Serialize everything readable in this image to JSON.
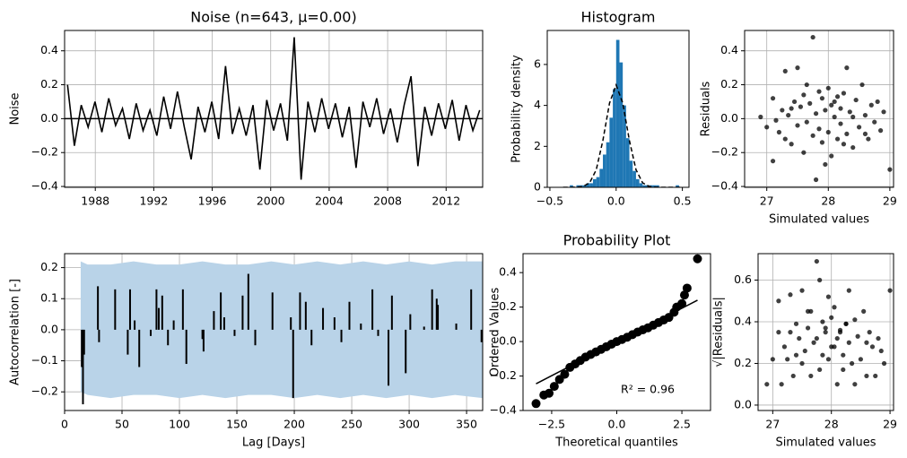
{
  "chart_data": [
    {
      "type": "line",
      "title": "Noise (n=643, μ=0.00)",
      "y_label": "Noise",
      "x": [
        1986.1,
        1986.57,
        1987.04,
        1987.51,
        1987.98,
        1988.45,
        1988.92,
        1989.39,
        1989.86,
        1990.33,
        1990.8,
        1991.27,
        1991.74,
        1992.21,
        1992.68,
        1993.15,
        1993.62,
        1994.09,
        1994.56,
        1995.03,
        1995.5,
        1995.97,
        1996.44,
        1996.91,
        1997.38,
        1997.85,
        1998.32,
        1998.79,
        1999.26,
        1999.73,
        2000.2,
        2000.67,
        2001.14,
        2001.61,
        2002.08,
        2002.55,
        2003.02,
        2003.49,
        2003.96,
        2004.43,
        2004.9,
        2005.37,
        2005.84,
        2006.31,
        2006.78,
        2007.25,
        2007.72,
        2008.19,
        2008.66,
        2009.13,
        2009.6,
        2010.07,
        2010.54,
        2011.01,
        2011.48,
        2011.95,
        2012.42,
        2012.89,
        2013.36,
        2013.83,
        2014.3
      ],
      "values": [
        0.2,
        -0.16,
        0.08,
        -0.05,
        0.1,
        -0.08,
        0.12,
        -0.04,
        0.06,
        -0.12,
        0.09,
        -0.07,
        0.05,
        -0.1,
        0.13,
        -0.06,
        0.16,
        -0.05,
        -0.24,
        0.07,
        -0.08,
        0.1,
        -0.12,
        0.31,
        -0.09,
        0.06,
        -0.1,
        0.08,
        -0.3,
        0.11,
        -0.07,
        0.09,
        -0.13,
        0.48,
        -0.36,
        0.1,
        -0.08,
        0.12,
        -0.06,
        0.09,
        -0.11,
        0.07,
        -0.29,
        0.1,
        -0.05,
        0.12,
        -0.09,
        0.06,
        -0.14,
        0.08,
        0.25,
        -0.28,
        0.07,
        -0.1,
        0.09,
        -0.06,
        0.11,
        -0.13,
        0.08,
        -0.07,
        0.05
      ],
      "color": "#000000",
      "hline": 0,
      "xlim": [
        1985.9,
        2014.5
      ],
      "xticks": [
        1988,
        1992,
        1996,
        2000,
        2004,
        2008,
        2012
      ],
      "ylim": [
        -0.405,
        0.52
      ],
      "yticks": [
        {
          "value": -0.4,
          "label": "−0.4"
        },
        {
          "value": -0.2,
          "label": "−0.2"
        },
        {
          "value": 0,
          "label": "0.0"
        },
        0.2,
        0.4
      ],
      "grid": true
    },
    {
      "type": "histogram",
      "title": "Histogram",
      "y_label": "Probability density",
      "bins": [
        -0.35,
        -0.325,
        -0.3,
        -0.275,
        -0.25,
        -0.225,
        -0.2,
        -0.175,
        -0.15,
        -0.125,
        -0.1,
        -0.075,
        -0.05,
        -0.025,
        0,
        0.025,
        0.05,
        0.075,
        0.1,
        0.125,
        0.15,
        0.175,
        0.2,
        0.225,
        0.25,
        0.275,
        0.3,
        0.325,
        0.35,
        0.375,
        0.4,
        0.425,
        0.45,
        0.475
      ],
      "values": [
        0.1,
        0,
        0.1,
        0.1,
        0.1,
        0.2,
        0.2,
        0.4,
        0.5,
        0.9,
        1.6,
        2.2,
        3.4,
        4.8,
        7.2,
        6.1,
        4.0,
        2.4,
        1.3,
        0.8,
        0.4,
        0.2,
        0.1,
        0.1,
        0.1,
        0.1,
        0.1,
        0,
        0,
        0,
        0,
        0,
        0.1
      ],
      "color": "#1f77b4",
      "curve": {
        "x": [
          -0.4,
          -0.3,
          -0.25,
          -0.2,
          -0.15,
          -0.1,
          -0.05,
          0,
          0.05,
          0.1,
          0.15,
          0.2,
          0.25,
          0.3,
          0.4,
          0.5
        ],
        "values": [
          0,
          0.004,
          0.04,
          0.22,
          0.86,
          2.29,
          4.11,
          5.0,
          4.11,
          2.29,
          0.86,
          0.22,
          0.04,
          0.004,
          0,
          0
        ],
        "color": "#000000",
        "dashed": true
      },
      "xlim": [
        -0.52,
        0.55
      ],
      "xticks": [
        {
          "value": -0.5,
          "label": "−0.5"
        },
        {
          "value": 0,
          "label": "0.0"
        },
        0.5
      ],
      "ylim": [
        0,
        7.66
      ],
      "yticks": [
        0,
        2,
        4,
        6
      ],
      "grid": false
    },
    {
      "type": "scatter",
      "x_label": "Simulated values",
      "y_label": "Residuals",
      "x": [
        26.9,
        27.0,
        27.1,
        27.1,
        27.2,
        27.25,
        27.3,
        27.3,
        27.35,
        27.4,
        27.45,
        27.5,
        27.5,
        27.55,
        27.6,
        27.6,
        27.65,
        27.7,
        27.75,
        27.75,
        27.8,
        27.8,
        27.85,
        27.9,
        27.9,
        27.95,
        28.0,
        28.0,
        28.05,
        28.1,
        28.1,
        28.15,
        28.2,
        28.2,
        28.25,
        28.3,
        28.3,
        28.35,
        28.4,
        28.45,
        28.5,
        28.55,
        28.6,
        28.65,
        28.7,
        28.75,
        28.8,
        28.85,
        28.9,
        29.0,
        27.15,
        27.4,
        27.85,
        28.05,
        28.4,
        28.6,
        27.95,
        28.25,
        27.65,
        28.15
      ],
      "values": [
        0.01,
        -0.05,
        -0.25,
        0.12,
        -0.08,
        0.05,
        0.28,
        -0.12,
        0.02,
        -0.15,
        0.1,
        0.3,
        -0.04,
        0.07,
        -0.2,
        0.14,
        -0.02,
        0.09,
        0.48,
        -0.1,
        -0.36,
        0.03,
        -0.06,
        0.12,
        -0.14,
        0.05,
        -0.08,
        0.18,
        -0.22,
        0.01,
        0.1,
        -0.12,
        0.06,
        -0.03,
        0.15,
        0.3,
        -0.09,
        0.04,
        -0.17,
        0.11,
        -0.05,
        0.2,
        0.02,
        -0.12,
        0.08,
        -0.02,
        0.1,
        -0.07,
        0.04,
        -0.3,
        -0.01,
        0.06,
        0.16,
        0.08,
        0.01,
        -0.09,
        -0.27,
        -0.15,
        0.2,
        0.13
      ],
      "color": "#000000",
      "xlim": [
        26.64,
        29.06
      ],
      "xticks": [
        27,
        28,
        29
      ],
      "ylim": [
        -0.405,
        0.52
      ],
      "yticks": [
        {
          "value": -0.4,
          "label": "−0.4"
        },
        {
          "value": -0.2,
          "label": "−0.2"
        },
        {
          "value": 0,
          "label": "0.0"
        },
        0.2,
        0.4
      ],
      "grid": true
    },
    {
      "type": "bar",
      "x_label": "Lag [Days]",
      "y_label": "Autocorrelation [-]",
      "x": [
        15,
        16,
        17,
        29,
        30,
        44,
        55,
        57,
        61,
        65,
        75,
        80,
        82,
        85,
        90,
        95,
        103,
        106,
        120,
        121,
        130,
        136,
        139,
        148,
        155,
        160,
        166,
        181,
        197,
        199,
        205,
        210,
        215,
        225,
        235,
        241,
        248,
        258,
        268,
        273,
        282,
        285,
        297,
        301,
        313,
        320,
        324,
        325,
        341,
        354,
        363
      ],
      "values": [
        -0.12,
        -0.24,
        -0.08,
        0.14,
        -0.04,
        0.13,
        -0.08,
        0.13,
        0.03,
        -0.12,
        -0.02,
        0.13,
        0.07,
        0.11,
        -0.05,
        0.03,
        0.13,
        -0.11,
        -0.03,
        -0.07,
        0.06,
        0.12,
        0.04,
        -0.02,
        0.11,
        0.18,
        -0.05,
        0.12,
        0.04,
        -0.22,
        0.12,
        0.09,
        -0.05,
        0.07,
        0.04,
        -0.04,
        0.09,
        0.02,
        0.13,
        -0.02,
        -0.18,
        0.11,
        -0.14,
        0.05,
        0.01,
        0.13,
        0.1,
        0.08,
        0.02,
        0.13,
        -0.04
      ],
      "color": "#000000",
      "band": {
        "x": [
          14,
          20,
          40,
          60,
          80,
          100,
          120,
          140,
          160,
          180,
          200,
          220,
          240,
          260,
          280,
          300,
          320,
          340,
          364
        ],
        "upper": [
          0.22,
          0.21,
          0.21,
          0.22,
          0.21,
          0.21,
          0.22,
          0.21,
          0.21,
          0.22,
          0.21,
          0.22,
          0.21,
          0.22,
          0.21,
          0.22,
          0.21,
          0.22,
          0.22
        ],
        "lower": [
          -0.2,
          -0.21,
          -0.22,
          -0.21,
          -0.21,
          -0.22,
          -0.21,
          -0.22,
          -0.21,
          -0.21,
          -0.22,
          -0.21,
          -0.22,
          -0.21,
          -0.22,
          -0.21,
          -0.22,
          -0.21,
          -0.22
        ],
        "color": "#b9d3e8"
      },
      "xlim": [
        0,
        364
      ],
      "xticks": [
        0,
        50,
        100,
        150,
        200,
        250,
        300,
        350
      ],
      "ylim": [
        -0.26,
        0.245
      ],
      "yticks": [
        {
          "value": -0.2,
          "label": "−0.2"
        },
        {
          "value": -0.1,
          "label": "−0.1"
        },
        {
          "value": 0,
          "label": "0.0"
        },
        0.1,
        0.2
      ],
      "grid": true
    },
    {
      "type": "scatter",
      "title": "Probability Plot",
      "x_label": "Theoretical quantiles",
      "y_label": "Ordered Values",
      "x": [
        -3.1,
        -2.8,
        -2.6,
        -2.4,
        -2.2,
        -2.0,
        -1.8,
        -1.6,
        -1.4,
        -1.2,
        -1.0,
        -0.8,
        -0.6,
        -0.4,
        -0.2,
        0,
        0.2,
        0.4,
        0.6,
        0.8,
        1.0,
        1.2,
        1.4,
        1.6,
        1.8,
        2.0,
        2.2,
        2.3,
        2.5,
        2.6,
        2.7,
        3.1
      ],
      "values": [
        -0.36,
        -0.31,
        -0.3,
        -0.26,
        -0.22,
        -0.19,
        -0.15,
        -0.13,
        -0.11,
        -0.09,
        -0.075,
        -0.06,
        -0.045,
        -0.03,
        -0.015,
        0,
        0.012,
        0.025,
        0.04,
        0.055,
        0.068,
        0.08,
        0.095,
        0.11,
        0.125,
        0.14,
        0.17,
        0.2,
        0.22,
        0.27,
        0.31,
        0.48
      ],
      "color": "#000000",
      "marker": "large",
      "fit": {
        "x": [
          -3.1,
          3.1
        ],
        "values": [
          -0.245,
          0.24
        ],
        "color": "#000000"
      },
      "annotation": "R² = 0.96",
      "xlim": [
        -3.6,
        3.6
      ],
      "xticks": [
        {
          "value": -2.5,
          "label": "−2.5"
        },
        {
          "value": 0,
          "label": "0.0"
        },
        2.5
      ],
      "ylim": [
        -0.4,
        0.51
      ],
      "yticks": [
        {
          "value": -0.4,
          "label": "−0.4"
        },
        {
          "value": -0.2,
          "label": "−0.2"
        },
        {
          "value": 0,
          "label": "0.0"
        },
        0.2,
        0.4
      ],
      "grid": false
    },
    {
      "type": "scatter",
      "x_label": "Simulated values",
      "y_label": "√|Residuals|",
      "x": [
        26.9,
        27.0,
        27.1,
        27.1,
        27.2,
        27.25,
        27.3,
        27.3,
        27.35,
        27.4,
        27.45,
        27.5,
        27.5,
        27.55,
        27.6,
        27.6,
        27.65,
        27.7,
        27.75,
        27.75,
        27.8,
        27.8,
        27.85,
        27.9,
        27.9,
        27.95,
        28.0,
        28.0,
        28.05,
        28.1,
        28.1,
        28.15,
        28.2,
        28.2,
        28.25,
        28.3,
        28.3,
        28.35,
        28.4,
        28.45,
        28.5,
        28.55,
        28.6,
        28.65,
        28.7,
        28.75,
        28.8,
        28.85,
        28.9,
        29.0,
        27.15,
        27.4,
        27.85,
        28.05,
        28.4,
        28.6,
        27.95,
        28.25,
        27.65,
        28.15
      ],
      "values": [
        0.1,
        0.22,
        0.5,
        0.35,
        0.28,
        0.22,
        0.53,
        0.35,
        0.14,
        0.39,
        0.32,
        0.55,
        0.2,
        0.26,
        0.45,
        0.37,
        0.14,
        0.3,
        0.69,
        0.32,
        0.6,
        0.17,
        0.24,
        0.35,
        0.37,
        0.22,
        0.28,
        0.42,
        0.47,
        0.1,
        0.32,
        0.35,
        0.24,
        0.17,
        0.39,
        0.55,
        0.3,
        0.2,
        0.41,
        0.33,
        0.22,
        0.45,
        0.14,
        0.35,
        0.28,
        0.14,
        0.32,
        0.26,
        0.2,
        0.55,
        0.1,
        0.24,
        0.4,
        0.28,
        0.1,
        0.3,
        0.52,
        0.39,
        0.45,
        0.36
      ],
      "color": "#000000",
      "xlim": [
        26.75,
        29.06
      ],
      "xticks": [
        27,
        28,
        29
      ],
      "ylim": [
        -0.026,
        0.727
      ],
      "yticks": [
        {
          "value": 0,
          "label": "0.0"
        },
        0.2,
        0.4,
        0.6
      ],
      "grid": true
    }
  ]
}
